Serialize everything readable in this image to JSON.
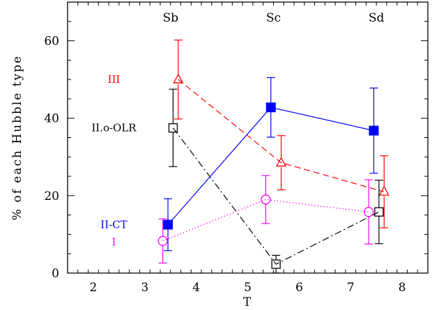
{
  "chart_data": {
    "type": "scatter",
    "xlabel": "T",
    "ylabel": "% of each Hubble type",
    "xlim": [
      1.5,
      8.5
    ],
    "ylim": [
      0,
      70
    ],
    "x_ticks": [
      2,
      3,
      4,
      5,
      6,
      7,
      8
    ],
    "y_ticks": [
      0,
      20,
      40,
      60
    ],
    "x_minor_step": 0.2,
    "y_minor_step": 5,
    "grid": false,
    "annotations": [
      {
        "text": "Sb",
        "x": 3.5,
        "y": 66
      },
      {
        "text": "Sc",
        "x": 5.5,
        "y": 66
      },
      {
        "text": "Sd",
        "x": 7.5,
        "y": 66
      }
    ],
    "series": [
      {
        "name": "III",
        "color": "#ff0000",
        "marker": "triangle-open",
        "linestyle": "dashed",
        "label_pos": {
          "x": 2.4,
          "y": 50
        },
        "points": [
          {
            "x": 3.65,
            "y": 50.0,
            "err": 10.2
          },
          {
            "x": 5.65,
            "y": 28.5,
            "err": 7.0
          },
          {
            "x": 7.65,
            "y": 21.0,
            "err": 9.3
          }
        ]
      },
      {
        "name": "II.o-OLR",
        "color": "#000000",
        "marker": "square-open",
        "linestyle": "dashdot",
        "label_pos": {
          "x": 2.4,
          "y": 37.5
        },
        "points": [
          {
            "x": 3.55,
            "y": 37.5,
            "err": 10.0
          },
          {
            "x": 5.55,
            "y": 2.3,
            "err": 2.3
          },
          {
            "x": 7.55,
            "y": 15.8,
            "err": 8.2
          }
        ]
      },
      {
        "name": "II-CT",
        "color": "#0000ff",
        "marker": "square-filled",
        "linestyle": "solid",
        "label_pos": {
          "x": 2.4,
          "y": 12.5
        },
        "points": [
          {
            "x": 3.45,
            "y": 12.5,
            "err": 6.7
          },
          {
            "x": 5.45,
            "y": 42.8,
            "err": 7.7
          },
          {
            "x": 7.45,
            "y": 36.8,
            "err": 11.0
          }
        ]
      },
      {
        "name": "I",
        "color": "#ff00ff",
        "marker": "circle-open",
        "linestyle": "dotted",
        "label_pos": {
          "x": 2.4,
          "y": 8.0
        },
        "points": [
          {
            "x": 3.35,
            "y": 8.3,
            "err": 5.7
          },
          {
            "x": 5.35,
            "y": 19.0,
            "err": 6.2
          },
          {
            "x": 7.35,
            "y": 15.8,
            "err": 8.3
          }
        ]
      }
    ]
  }
}
